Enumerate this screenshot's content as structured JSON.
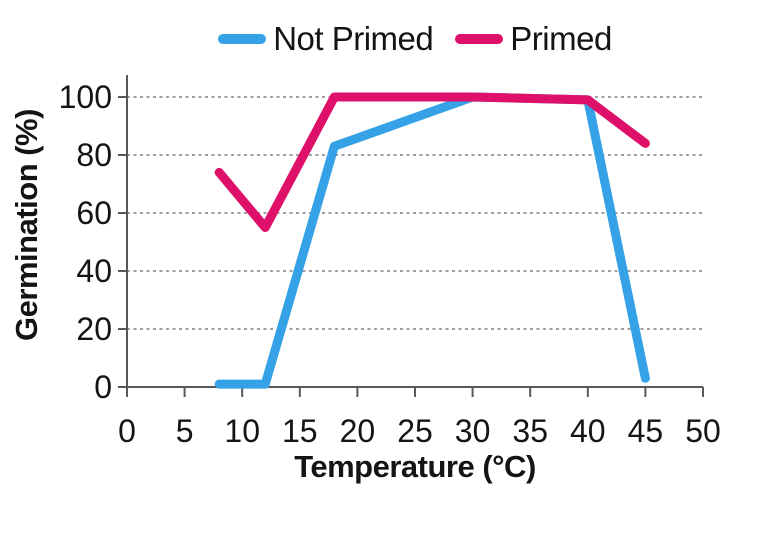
{
  "chart_data": {
    "type": "line",
    "x": [
      8,
      12,
      18,
      30,
      40,
      45
    ],
    "series": [
      {
        "name": "Not Primed",
        "color": "#35A2E7",
        "values": [
          1,
          1,
          83,
          100,
          99,
          3
        ]
      },
      {
        "name": "Primed",
        "color": "#DE1069",
        "values": [
          74,
          55,
          100,
          100,
          99,
          84
        ]
      }
    ],
    "xlabel": "Temperature (°C)",
    "ylabel": "Germination (%)",
    "xlim": [
      0,
      50
    ],
    "ylim": [
      0,
      100
    ],
    "x_ticks": [
      0,
      5,
      10,
      15,
      20,
      25,
      30,
      35,
      40,
      45,
      50
    ],
    "y_ticks": [
      0,
      20,
      40,
      60,
      80,
      100
    ],
    "grid": "horizontal-dashed",
    "legend_position": "top-center",
    "style": {
      "axis_color": "#595959",
      "grid_color": "#808080",
      "text_color": "#141414",
      "background": "#FFFFFF"
    }
  }
}
